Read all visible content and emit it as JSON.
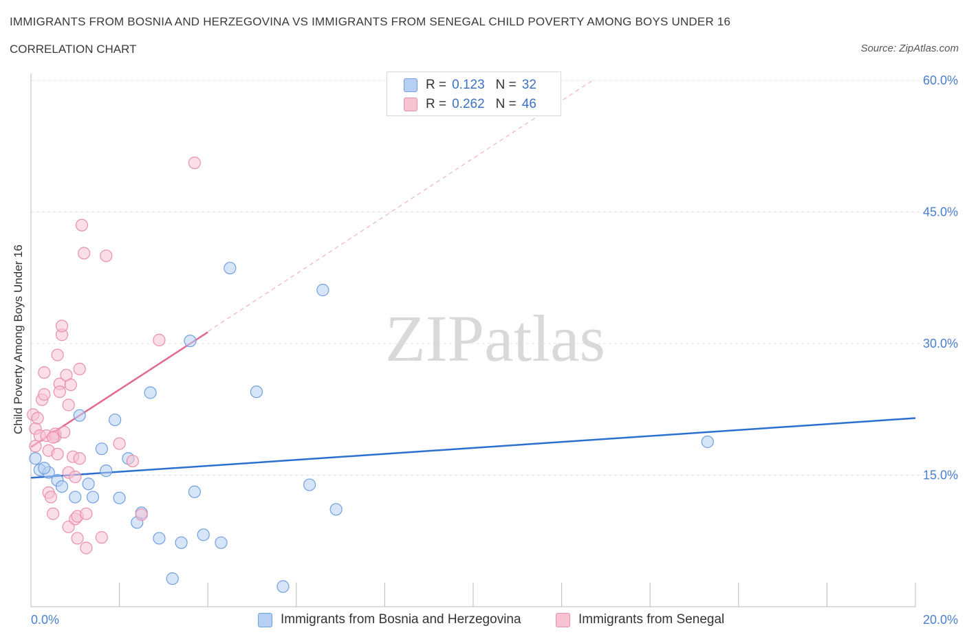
{
  "chart_data": {
    "type": "scatter",
    "title": "IMMIGRANTS FROM BOSNIA AND HERZEGOVINA VS IMMIGRANTS FROM SENEGAL CHILD POVERTY AMONG BOYS UNDER 16",
    "subtitle": "CORRELATION CHART",
    "source": "Source: ZipAtlas.com",
    "watermark": "ZIPatlas",
    "xlabel": "",
    "ylabel": "Child Poverty Among Boys Under 16",
    "xlim": [
      0,
      20
    ],
    "ylim": [
      0,
      60
    ],
    "x_tick_labels": [
      "0.0%",
      "20.0%"
    ],
    "y_ticks": [
      15,
      30,
      45,
      60
    ],
    "y_tick_labels": [
      "15.0%",
      "30.0%",
      "45.0%",
      "60.0%"
    ],
    "legend": {
      "rows": [
        {
          "r_label": "R =",
          "r_value": "0.123",
          "n_label": "N =",
          "n_value": "32"
        },
        {
          "r_label": "R =",
          "r_value": "0.262",
          "n_label": "N =",
          "n_value": "46"
        }
      ]
    },
    "series": [
      {
        "name": "Immigrants from Bosnia and Herzegovina",
        "color": "#6f9fe0",
        "fill": "#b7cff3",
        "line_color": "#2b6fd0",
        "trend": {
          "x": [
            0,
            20
          ],
          "y": [
            14.7,
            21.5
          ]
        },
        "points": [
          [
            0.1,
            16.9
          ],
          [
            0.2,
            15.6
          ],
          [
            0.4,
            15.3
          ],
          [
            0.6,
            14.4
          ],
          [
            0.7,
            13.7
          ],
          [
            1.0,
            12.5
          ],
          [
            1.1,
            21.8
          ],
          [
            1.3,
            14.0
          ],
          [
            1.4,
            12.5
          ],
          [
            1.6,
            18.0
          ],
          [
            1.7,
            15.5
          ],
          [
            1.9,
            21.3
          ],
          [
            2.0,
            12.4
          ],
          [
            2.2,
            16.9
          ],
          [
            2.4,
            9.6
          ],
          [
            2.5,
            10.7
          ],
          [
            2.7,
            24.4
          ],
          [
            2.9,
            7.8
          ],
          [
            3.2,
            3.2
          ],
          [
            3.4,
            7.3
          ],
          [
            3.6,
            30.3
          ],
          [
            3.7,
            13.1
          ],
          [
            3.9,
            8.2
          ],
          [
            4.3,
            7.3
          ],
          [
            4.5,
            38.6
          ],
          [
            5.1,
            24.5
          ],
          [
            5.7,
            2.3
          ],
          [
            6.3,
            13.9
          ],
          [
            6.6,
            36.1
          ],
          [
            6.9,
            11.1
          ],
          [
            15.3,
            18.8
          ],
          [
            0.3,
            15.8
          ]
        ]
      },
      {
        "name": "Immigrants from Senegal",
        "color": "#ea8fab",
        "fill": "#f7c3d3",
        "line_color": "#e26991",
        "trend": {
          "x": [
            0,
            4.0
          ],
          "y": [
            18.2,
            31.3
          ]
        },
        "trend_extended": {
          "x": [
            0,
            12.7
          ],
          "y": [
            18.2,
            60
          ]
        },
        "points": [
          [
            0.05,
            21.9
          ],
          [
            0.1,
            20.3
          ],
          [
            0.1,
            18.3
          ],
          [
            0.15,
            21.5
          ],
          [
            0.2,
            19.5
          ],
          [
            0.25,
            23.6
          ],
          [
            0.3,
            26.7
          ],
          [
            0.3,
            24.2
          ],
          [
            0.35,
            19.5
          ],
          [
            0.4,
            17.8
          ],
          [
            0.4,
            13.0
          ],
          [
            0.45,
            12.5
          ],
          [
            0.5,
            10.6
          ],
          [
            0.55,
            19.7
          ],
          [
            0.55,
            19.4
          ],
          [
            0.6,
            17.4
          ],
          [
            0.6,
            28.7
          ],
          [
            0.65,
            25.4
          ],
          [
            0.65,
            24.5
          ],
          [
            0.7,
            31.0
          ],
          [
            0.7,
            32.0
          ],
          [
            0.75,
            19.9
          ],
          [
            0.8,
            26.4
          ],
          [
            0.85,
            23.0
          ],
          [
            0.85,
            15.3
          ],
          [
            0.85,
            9.1
          ],
          [
            0.9,
            25.3
          ],
          [
            0.95,
            17.1
          ],
          [
            1.0,
            14.8
          ],
          [
            1.0,
            10.0
          ],
          [
            1.05,
            10.3
          ],
          [
            1.05,
            7.8
          ],
          [
            1.1,
            16.9
          ],
          [
            1.1,
            27.1
          ],
          [
            1.15,
            43.5
          ],
          [
            1.2,
            40.3
          ],
          [
            1.25,
            10.6
          ],
          [
            1.25,
            6.7
          ],
          [
            1.6,
            7.9
          ],
          [
            1.7,
            40.0
          ],
          [
            2.0,
            18.6
          ],
          [
            2.3,
            16.6
          ],
          [
            2.5,
            10.5
          ],
          [
            2.9,
            30.4
          ],
          [
            3.7,
            50.6
          ],
          [
            0.5,
            19.3
          ]
        ]
      }
    ]
  }
}
